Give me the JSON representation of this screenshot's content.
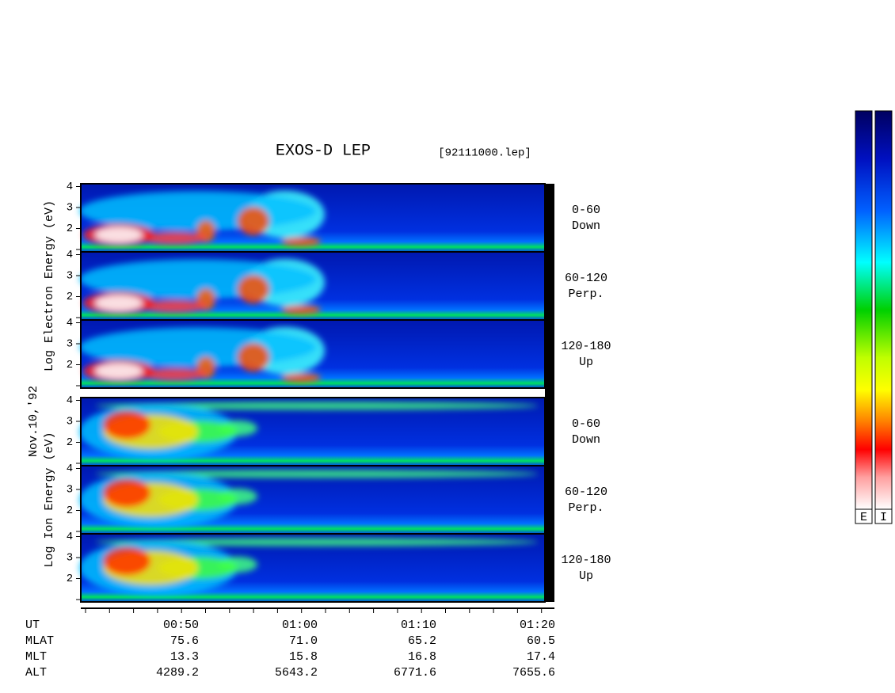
{
  "title": "EXOS-D LEP",
  "file": "[92111000.lep]",
  "date": "Nov.10,'92",
  "yticks": [
    4,
    3,
    2
  ],
  "groups": [
    {
      "ylabel": "Log  Electron  Energy (eV)",
      "panels": [
        {
          "angle": "0-60",
          "direction": "Down"
        },
        {
          "angle": "60-120",
          "direction": "Perp."
        },
        {
          "angle": "120-180",
          "direction": "Up"
        }
      ]
    },
    {
      "ylabel": "Log  Ion  Energy (eV)",
      "panels": [
        {
          "angle": "0-60",
          "direction": "Down"
        },
        {
          "angle": "60-120",
          "direction": "Perp."
        },
        {
          "angle": "120-180",
          "direction": "Up"
        }
      ]
    }
  ],
  "table": {
    "rows": [
      {
        "label": "UT",
        "values": [
          "00:50",
          "01:00",
          "01:10",
          "01:20"
        ]
      },
      {
        "label": "MLAT",
        "values": [
          "75.6",
          "71.0",
          "65.2",
          "60.5"
        ]
      },
      {
        "label": "MLT",
        "values": [
          "13.3",
          "15.8",
          "16.8",
          "17.4"
        ]
      },
      {
        "label": "ALT",
        "values": [
          "4289.2",
          "5643.2",
          "6771.6",
          "7655.6"
        ]
      }
    ]
  },
  "colorbars": [
    "E",
    "I"
  ]
}
